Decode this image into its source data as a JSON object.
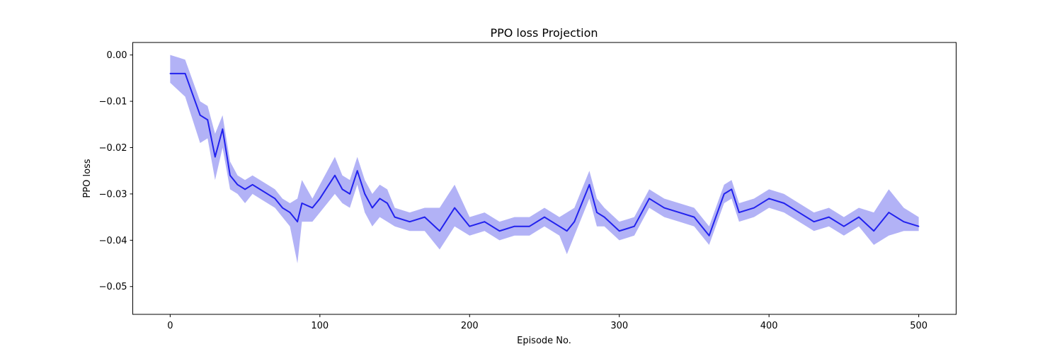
{
  "chart_data": {
    "type": "line",
    "title": "PPO loss Projection",
    "xlabel": "Episode No.",
    "ylabel": "PPO loss",
    "xlim": [
      -25,
      525
    ],
    "ylim": [
      -0.056,
      0.0027
    ],
    "x_ticks": [
      0,
      100,
      200,
      300,
      400,
      500
    ],
    "x_tick_labels": [
      "0",
      "100",
      "200",
      "300",
      "400",
      "500"
    ],
    "y_ticks": [
      0.0,
      -0.01,
      -0.02,
      -0.03,
      -0.04,
      -0.05
    ],
    "y_tick_labels": [
      "0.00",
      "−0.01",
      "−0.02",
      "−0.03",
      "−0.04",
      "−0.05"
    ],
    "grid": false,
    "legend": "none",
    "colors": {
      "line": "#2222ee",
      "band": "#6666ee"
    },
    "series": [
      {
        "x": [
          0,
          10,
          20,
          25,
          30,
          35,
          40,
          45,
          50,
          55,
          60,
          70,
          75,
          80,
          85,
          88,
          95,
          100,
          110,
          115,
          120,
          125,
          130,
          135,
          140,
          145,
          150,
          160,
          170,
          180,
          190,
          200,
          210,
          220,
          230,
          240,
          250,
          260,
          265,
          270,
          280,
          285,
          290,
          300,
          310,
          320,
          330,
          340,
          350,
          360,
          370,
          375,
          380,
          390,
          400,
          410,
          420,
          430,
          440,
          450,
          460,
          470,
          480,
          490,
          500
        ],
        "y": [
          -0.004,
          -0.004,
          -0.013,
          -0.014,
          -0.022,
          -0.016,
          -0.026,
          -0.028,
          -0.029,
          -0.028,
          -0.029,
          -0.031,
          -0.033,
          -0.034,
          -0.036,
          -0.032,
          -0.033,
          -0.031,
          -0.026,
          -0.029,
          -0.03,
          -0.025,
          -0.03,
          -0.033,
          -0.031,
          -0.032,
          -0.035,
          -0.036,
          -0.035,
          -0.038,
          -0.033,
          -0.037,
          -0.036,
          -0.038,
          -0.037,
          -0.037,
          -0.035,
          -0.037,
          -0.038,
          -0.036,
          -0.028,
          -0.034,
          -0.035,
          -0.038,
          -0.037,
          -0.031,
          -0.033,
          -0.034,
          -0.035,
          -0.039,
          -0.03,
          -0.029,
          -0.034,
          -0.033,
          -0.031,
          -0.032,
          -0.034,
          -0.036,
          -0.035,
          -0.037,
          -0.035,
          -0.038,
          -0.034,
          -0.036,
          -0.037
        ],
        "y_low": [
          -0.006,
          -0.009,
          -0.019,
          -0.018,
          -0.027,
          -0.02,
          -0.029,
          -0.03,
          -0.032,
          -0.03,
          -0.031,
          -0.033,
          -0.035,
          -0.037,
          -0.045,
          -0.036,
          -0.036,
          -0.034,
          -0.03,
          -0.032,
          -0.033,
          -0.028,
          -0.034,
          -0.037,
          -0.035,
          -0.036,
          -0.037,
          -0.038,
          -0.038,
          -0.042,
          -0.037,
          -0.039,
          -0.038,
          -0.04,
          -0.039,
          -0.039,
          -0.037,
          -0.039,
          -0.043,
          -0.039,
          -0.031,
          -0.037,
          -0.037,
          -0.04,
          -0.039,
          -0.033,
          -0.035,
          -0.036,
          -0.037,
          -0.041,
          -0.032,
          -0.031,
          -0.036,
          -0.035,
          -0.033,
          -0.034,
          -0.036,
          -0.038,
          -0.037,
          -0.039,
          -0.037,
          -0.041,
          -0.039,
          -0.038,
          -0.038
        ],
        "y_high": [
          0.0,
          -0.001,
          -0.01,
          -0.011,
          -0.017,
          -0.013,
          -0.023,
          -0.026,
          -0.027,
          -0.026,
          -0.027,
          -0.029,
          -0.031,
          -0.032,
          -0.031,
          -0.027,
          -0.031,
          -0.028,
          -0.022,
          -0.026,
          -0.027,
          -0.022,
          -0.027,
          -0.03,
          -0.028,
          -0.029,
          -0.033,
          -0.034,
          -0.033,
          -0.033,
          -0.028,
          -0.035,
          -0.034,
          -0.036,
          -0.035,
          -0.035,
          -0.033,
          -0.035,
          -0.034,
          -0.033,
          -0.025,
          -0.031,
          -0.033,
          -0.036,
          -0.035,
          -0.029,
          -0.031,
          -0.032,
          -0.033,
          -0.037,
          -0.028,
          -0.027,
          -0.032,
          -0.031,
          -0.029,
          -0.03,
          -0.032,
          -0.034,
          -0.033,
          -0.035,
          -0.033,
          -0.034,
          -0.029,
          -0.033,
          -0.035
        ]
      }
    ]
  }
}
